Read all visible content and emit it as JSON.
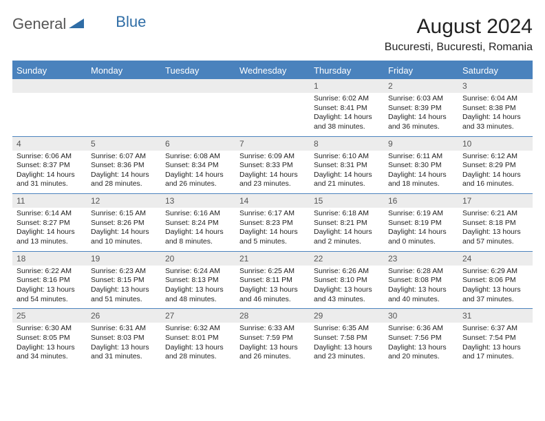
{
  "logo": {
    "general": "General",
    "blue": "Blue"
  },
  "title": "August 2024",
  "location": "Bucuresti, Bucuresti, Romania",
  "colors": {
    "header_bg": "#4a82bd",
    "header_text": "#ffffff",
    "daynum_bg": "#ececec",
    "rule": "#4a82bd",
    "text": "#222222",
    "logo_gray": "#555555",
    "logo_blue": "#2f6da6"
  },
  "day_names": [
    "Sunday",
    "Monday",
    "Tuesday",
    "Wednesday",
    "Thursday",
    "Friday",
    "Saturday"
  ],
  "weeks": [
    [
      null,
      null,
      null,
      null,
      {
        "n": "1",
        "sunrise": "Sunrise: 6:02 AM",
        "sunset": "Sunset: 8:41 PM",
        "daylight": "Daylight: 14 hours and 38 minutes."
      },
      {
        "n": "2",
        "sunrise": "Sunrise: 6:03 AM",
        "sunset": "Sunset: 8:39 PM",
        "daylight": "Daylight: 14 hours and 36 minutes."
      },
      {
        "n": "3",
        "sunrise": "Sunrise: 6:04 AM",
        "sunset": "Sunset: 8:38 PM",
        "daylight": "Daylight: 14 hours and 33 minutes."
      }
    ],
    [
      {
        "n": "4",
        "sunrise": "Sunrise: 6:06 AM",
        "sunset": "Sunset: 8:37 PM",
        "daylight": "Daylight: 14 hours and 31 minutes."
      },
      {
        "n": "5",
        "sunrise": "Sunrise: 6:07 AM",
        "sunset": "Sunset: 8:36 PM",
        "daylight": "Daylight: 14 hours and 28 minutes."
      },
      {
        "n": "6",
        "sunrise": "Sunrise: 6:08 AM",
        "sunset": "Sunset: 8:34 PM",
        "daylight": "Daylight: 14 hours and 26 minutes."
      },
      {
        "n": "7",
        "sunrise": "Sunrise: 6:09 AM",
        "sunset": "Sunset: 8:33 PM",
        "daylight": "Daylight: 14 hours and 23 minutes."
      },
      {
        "n": "8",
        "sunrise": "Sunrise: 6:10 AM",
        "sunset": "Sunset: 8:31 PM",
        "daylight": "Daylight: 14 hours and 21 minutes."
      },
      {
        "n": "9",
        "sunrise": "Sunrise: 6:11 AM",
        "sunset": "Sunset: 8:30 PM",
        "daylight": "Daylight: 14 hours and 18 minutes."
      },
      {
        "n": "10",
        "sunrise": "Sunrise: 6:12 AM",
        "sunset": "Sunset: 8:29 PM",
        "daylight": "Daylight: 14 hours and 16 minutes."
      }
    ],
    [
      {
        "n": "11",
        "sunrise": "Sunrise: 6:14 AM",
        "sunset": "Sunset: 8:27 PM",
        "daylight": "Daylight: 14 hours and 13 minutes."
      },
      {
        "n": "12",
        "sunrise": "Sunrise: 6:15 AM",
        "sunset": "Sunset: 8:26 PM",
        "daylight": "Daylight: 14 hours and 10 minutes."
      },
      {
        "n": "13",
        "sunrise": "Sunrise: 6:16 AM",
        "sunset": "Sunset: 8:24 PM",
        "daylight": "Daylight: 14 hours and 8 minutes."
      },
      {
        "n": "14",
        "sunrise": "Sunrise: 6:17 AM",
        "sunset": "Sunset: 8:23 PM",
        "daylight": "Daylight: 14 hours and 5 minutes."
      },
      {
        "n": "15",
        "sunrise": "Sunrise: 6:18 AM",
        "sunset": "Sunset: 8:21 PM",
        "daylight": "Daylight: 14 hours and 2 minutes."
      },
      {
        "n": "16",
        "sunrise": "Sunrise: 6:19 AM",
        "sunset": "Sunset: 8:19 PM",
        "daylight": "Daylight: 14 hours and 0 minutes."
      },
      {
        "n": "17",
        "sunrise": "Sunrise: 6:21 AM",
        "sunset": "Sunset: 8:18 PM",
        "daylight": "Daylight: 13 hours and 57 minutes."
      }
    ],
    [
      {
        "n": "18",
        "sunrise": "Sunrise: 6:22 AM",
        "sunset": "Sunset: 8:16 PM",
        "daylight": "Daylight: 13 hours and 54 minutes."
      },
      {
        "n": "19",
        "sunrise": "Sunrise: 6:23 AM",
        "sunset": "Sunset: 8:15 PM",
        "daylight": "Daylight: 13 hours and 51 minutes."
      },
      {
        "n": "20",
        "sunrise": "Sunrise: 6:24 AM",
        "sunset": "Sunset: 8:13 PM",
        "daylight": "Daylight: 13 hours and 48 minutes."
      },
      {
        "n": "21",
        "sunrise": "Sunrise: 6:25 AM",
        "sunset": "Sunset: 8:11 PM",
        "daylight": "Daylight: 13 hours and 46 minutes."
      },
      {
        "n": "22",
        "sunrise": "Sunrise: 6:26 AM",
        "sunset": "Sunset: 8:10 PM",
        "daylight": "Daylight: 13 hours and 43 minutes."
      },
      {
        "n": "23",
        "sunrise": "Sunrise: 6:28 AM",
        "sunset": "Sunset: 8:08 PM",
        "daylight": "Daylight: 13 hours and 40 minutes."
      },
      {
        "n": "24",
        "sunrise": "Sunrise: 6:29 AM",
        "sunset": "Sunset: 8:06 PM",
        "daylight": "Daylight: 13 hours and 37 minutes."
      }
    ],
    [
      {
        "n": "25",
        "sunrise": "Sunrise: 6:30 AM",
        "sunset": "Sunset: 8:05 PM",
        "daylight": "Daylight: 13 hours and 34 minutes."
      },
      {
        "n": "26",
        "sunrise": "Sunrise: 6:31 AM",
        "sunset": "Sunset: 8:03 PM",
        "daylight": "Daylight: 13 hours and 31 minutes."
      },
      {
        "n": "27",
        "sunrise": "Sunrise: 6:32 AM",
        "sunset": "Sunset: 8:01 PM",
        "daylight": "Daylight: 13 hours and 28 minutes."
      },
      {
        "n": "28",
        "sunrise": "Sunrise: 6:33 AM",
        "sunset": "Sunset: 7:59 PM",
        "daylight": "Daylight: 13 hours and 26 minutes."
      },
      {
        "n": "29",
        "sunrise": "Sunrise: 6:35 AM",
        "sunset": "Sunset: 7:58 PM",
        "daylight": "Daylight: 13 hours and 23 minutes."
      },
      {
        "n": "30",
        "sunrise": "Sunrise: 6:36 AM",
        "sunset": "Sunset: 7:56 PM",
        "daylight": "Daylight: 13 hours and 20 minutes."
      },
      {
        "n": "31",
        "sunrise": "Sunrise: 6:37 AM",
        "sunset": "Sunset: 7:54 PM",
        "daylight": "Daylight: 13 hours and 17 minutes."
      }
    ]
  ]
}
